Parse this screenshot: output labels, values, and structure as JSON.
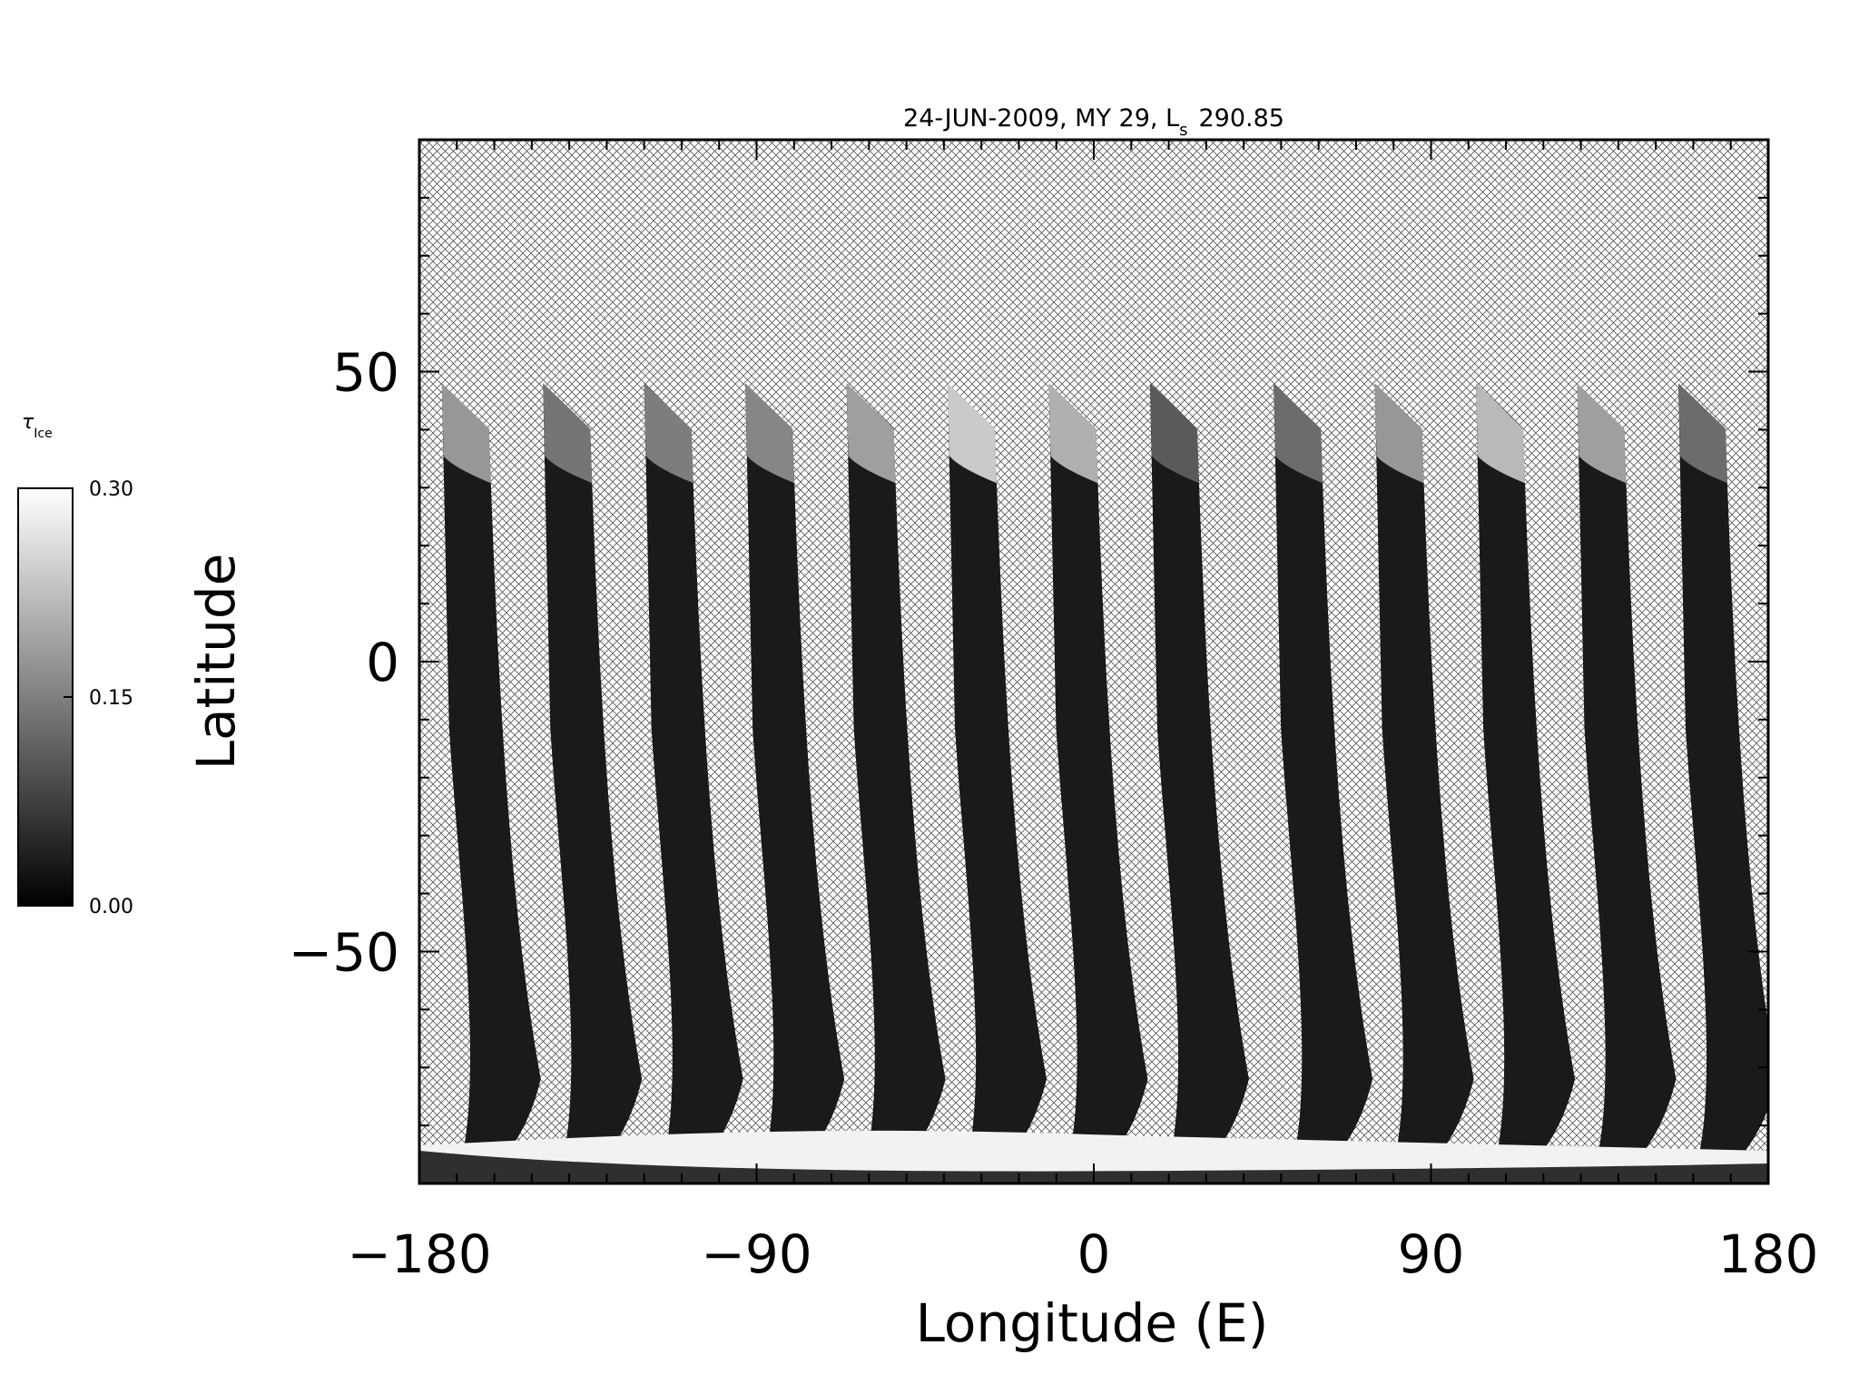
{
  "chart_data": {
    "type": "heatmap",
    "title": "24-JUN-2009, MY 29,  L",
    "title_subscript": "s",
    "title_value": "290.85",
    "xlabel": "Longitude (E)",
    "ylabel": "Latitude",
    "xlim": [
      -180,
      180
    ],
    "ylim": [
      -90,
      90
    ],
    "x_ticks": [
      -180,
      -90,
      0,
      90,
      180
    ],
    "x_tick_labels": [
      "−180",
      "−90",
      "0",
      "90",
      "180"
    ],
    "y_ticks": [
      50,
      0,
      -50
    ],
    "y_tick_labels": [
      "50",
      "0",
      "−50"
    ],
    "colorbar": {
      "label": "τ",
      "label_subscript": "Ice",
      "range": [
        0.0,
        0.3
      ],
      "ticks": [
        0.0,
        0.15,
        0.3
      ],
      "tick_labels": [
        "0.00",
        "0.15",
        "0.30"
      ],
      "colormap": "grayscale"
    },
    "missing_data_pattern": "cross-hatch",
    "orbit_swaths": [
      {
        "lon_top": -174,
        "lat_top": 48,
        "brightness": 0.55
      },
      {
        "lon_top": -147,
        "lat_top": 48,
        "brightness": 0.35
      },
      {
        "lon_top": -120,
        "lat_top": 48,
        "brightness": 0.4
      },
      {
        "lon_top": -93,
        "lat_top": 48,
        "brightness": 0.45
      },
      {
        "lon_top": -66,
        "lat_top": 48,
        "brightness": 0.6
      },
      {
        "lon_top": -39,
        "lat_top": 48,
        "brightness": 0.85
      },
      {
        "lon_top": -12,
        "lat_top": 48,
        "brightness": 0.7
      },
      {
        "lon_top": 15,
        "lat_top": 48,
        "brightness": 0.2
      },
      {
        "lon_top": 48,
        "lat_top": 48,
        "brightness": 0.3
      },
      {
        "lon_top": 75,
        "lat_top": 48,
        "brightness": 0.55
      },
      {
        "lon_top": 102,
        "lat_top": 48,
        "brightness": 0.75
      },
      {
        "lon_top": 129,
        "lat_top": 48,
        "brightness": 0.6
      },
      {
        "lon_top": 156,
        "lat_top": 48,
        "brightness": 0.3
      }
    ],
    "colors": {
      "background": "#ffffff",
      "hatch": "#555555",
      "swath": "#1a1a1a",
      "polar": "#f2f2f2"
    }
  }
}
